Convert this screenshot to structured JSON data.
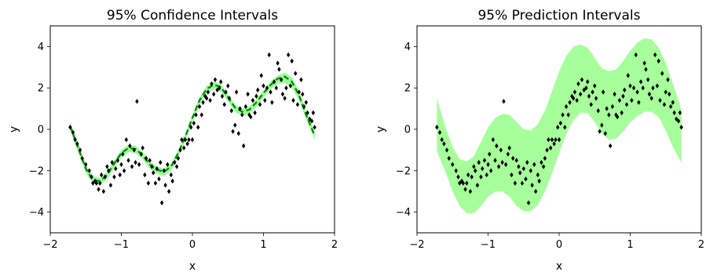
{
  "chart_data": [
    {
      "type": "scatter",
      "title": "95% Confidence Intervals",
      "xlabel": "x",
      "ylabel": "y",
      "xlim": [
        -2,
        2
      ],
      "ylim": [
        -5,
        5
      ],
      "xticks": [
        "−2",
        "−1",
        "0",
        "1",
        "2"
      ],
      "yticks": [
        "−4",
        "−2",
        "0",
        "2",
        "4"
      ],
      "band_color": "#99ff99",
      "mean_color": "#008800",
      "point_color": "#000000",
      "band": {
        "x": [
          -1.72,
          -1.6,
          -1.5,
          -1.4,
          -1.3,
          -1.2,
          -1.1,
          -1.0,
          -0.9,
          -0.8,
          -0.7,
          -0.6,
          -0.5,
          -0.4,
          -0.3,
          -0.2,
          -0.1,
          0.0,
          0.1,
          0.2,
          0.3,
          0.4,
          0.5,
          0.6,
          0.7,
          0.8,
          0.9,
          1.0,
          1.1,
          1.2,
          1.3,
          1.4,
          1.5,
          1.6,
          1.72
        ],
        "lower": [
          -0.05,
          -1.2,
          -2.1,
          -2.6,
          -2.7,
          -2.4,
          -1.85,
          -1.35,
          -1.1,
          -1.15,
          -1.45,
          -1.9,
          -2.15,
          -2.25,
          -2.0,
          -1.35,
          -0.55,
          0.35,
          1.2,
          1.75,
          1.95,
          1.85,
          1.35,
          0.85,
          0.65,
          0.75,
          1.1,
          1.55,
          1.95,
          2.2,
          2.25,
          2.0,
          1.4,
          0.5,
          -0.5
        ],
        "upper": [
          0.35,
          -0.75,
          -1.7,
          -2.25,
          -2.35,
          -2.05,
          -1.5,
          -1.0,
          -0.75,
          -0.8,
          -1.1,
          -1.55,
          -1.8,
          -1.9,
          -1.65,
          -1.0,
          -0.2,
          0.7,
          1.55,
          2.1,
          2.3,
          2.2,
          1.7,
          1.2,
          1.0,
          1.1,
          1.45,
          1.9,
          2.3,
          2.6,
          2.75,
          2.5,
          1.85,
          0.9,
          -0.1
        ]
      },
      "mean": {
        "x": [
          -1.72,
          -1.6,
          -1.5,
          -1.4,
          -1.3,
          -1.2,
          -1.1,
          -1.0,
          -0.9,
          -0.8,
          -0.7,
          -0.6,
          -0.5,
          -0.4,
          -0.3,
          -0.2,
          -0.1,
          0.0,
          0.1,
          0.2,
          0.3,
          0.4,
          0.5,
          0.6,
          0.7,
          0.8,
          0.9,
          1.0,
          1.1,
          1.2,
          1.3,
          1.4,
          1.5,
          1.6,
          1.72
        ],
        "y": [
          0.15,
          -0.95,
          -1.9,
          -2.45,
          -2.5,
          -2.2,
          -1.65,
          -1.15,
          -0.9,
          -0.95,
          -1.25,
          -1.7,
          -1.95,
          -2.05,
          -1.8,
          -1.15,
          -0.35,
          0.55,
          1.4,
          1.95,
          2.15,
          2.05,
          1.55,
          1.05,
          0.85,
          0.95,
          1.3,
          1.75,
          2.15,
          2.45,
          2.55,
          2.3,
          1.65,
          0.7,
          -0.3
        ]
      },
      "points": [
        [
          -1.72,
          0.1
        ],
        [
          -1.68,
          -0.15
        ],
        [
          -1.65,
          -0.5
        ],
        [
          -1.62,
          -0.7
        ],
        [
          -1.58,
          -1.0
        ],
        [
          -1.55,
          -1.4
        ],
        [
          -1.5,
          -1.7
        ],
        [
          -1.45,
          -2.0
        ],
        [
          -1.42,
          -2.3
        ],
        [
          -1.4,
          -2.6
        ],
        [
          -1.37,
          -2.5
        ],
        [
          -1.35,
          -2.6
        ],
        [
          -1.32,
          -2.9
        ],
        [
          -1.3,
          -2.6
        ],
        [
          -1.28,
          -2.2
        ],
        [
          -1.25,
          -3.0
        ],
        [
          -1.23,
          -2.3
        ],
        [
          -1.2,
          -1.8
        ],
        [
          -1.18,
          -2.0
        ],
        [
          -1.15,
          -2.7
        ],
        [
          -1.13,
          -1.6
        ],
        [
          -1.1,
          -2.3
        ],
        [
          -1.08,
          -1.9
        ],
        [
          -1.05,
          -1.5
        ],
        [
          -1.02,
          -2.2
        ],
        [
          -1.0,
          -1.7
        ],
        [
          -0.98,
          -1.2
        ],
        [
          -0.96,
          -2.0
        ],
        [
          -0.93,
          -0.5
        ],
        [
          -0.9,
          -1.5
        ],
        [
          -0.88,
          -0.8
        ],
        [
          -0.85,
          -1.8
        ],
        [
          -0.82,
          -1.0
        ],
        [
          -0.8,
          -1.6
        ],
        [
          -0.78,
          1.35
        ],
        [
          -0.75,
          -1.7
        ],
        [
          -0.72,
          -1.2
        ],
        [
          -0.7,
          -0.9
        ],
        [
          -0.67,
          -2.2
        ],
        [
          -0.65,
          -1.4
        ],
        [
          -0.62,
          -2.6
        ],
        [
          -0.6,
          -1.5
        ],
        [
          -0.57,
          -1.8
        ],
        [
          -0.55,
          -2.1
        ],
        [
          -0.52,
          -2.6
        ],
        [
          -0.5,
          -1.9
        ],
        [
          -0.47,
          -2.4
        ],
        [
          -0.45,
          -1.6
        ],
        [
          -0.43,
          -3.55
        ],
        [
          -0.4,
          -2.0
        ],
        [
          -0.38,
          -2.7
        ],
        [
          -0.35,
          -1.7
        ],
        [
          -0.33,
          -3.0
        ],
        [
          -0.3,
          -2.2
        ],
        [
          -0.28,
          -2.5
        ],
        [
          -0.25,
          -1.6
        ],
        [
          -0.22,
          -1.8
        ],
        [
          -0.2,
          -1.4
        ],
        [
          -0.17,
          -1.0
        ],
        [
          -0.15,
          -0.5
        ],
        [
          -0.12,
          -0.9
        ],
        [
          -0.1,
          -0.5
        ],
        [
          -0.07,
          -0.7
        ],
        [
          -0.05,
          -0.5
        ],
        [
          -0.02,
          0.1
        ],
        [
          0.0,
          -0.5
        ],
        [
          0.02,
          0.3
        ],
        [
          0.05,
          0.7
        ],
        [
          0.08,
          0.1
        ],
        [
          0.1,
          1.1
        ],
        [
          0.13,
          0.7
        ],
        [
          0.15,
          1.3
        ],
        [
          0.18,
          1.6
        ],
        [
          0.2,
          1.5
        ],
        [
          0.22,
          1.8
        ],
        [
          0.25,
          1.4
        ],
        [
          0.27,
          2.2
        ],
        [
          0.3,
          1.7
        ],
        [
          0.32,
          2.4
        ],
        [
          0.35,
          1.9
        ],
        [
          0.38,
          2.0
        ],
        [
          0.4,
          2.3
        ],
        [
          0.42,
          1.6
        ],
        [
          0.45,
          1.2
        ],
        [
          0.47,
          1.8
        ],
        [
          0.5,
          2.1
        ],
        [
          0.52,
          1.5
        ],
        [
          0.55,
          0.9
        ],
        [
          0.57,
          -0.1
        ],
        [
          0.6,
          0.2
        ],
        [
          0.62,
          1.8
        ],
        [
          0.65,
          -0.2
        ],
        [
          0.67,
          1.0
        ],
        [
          0.7,
          0.7
        ],
        [
          0.72,
          -0.8
        ],
        [
          0.75,
          1.1
        ],
        [
          0.78,
          1.7
        ],
        [
          0.8,
          0.7
        ],
        [
          0.82,
          0.6
        ],
        [
          0.85,
          1.4
        ],
        [
          0.88,
          0.8
        ],
        [
          0.9,
          1.6
        ],
        [
          0.92,
          1.9
        ],
        [
          0.95,
          1.2
        ],
        [
          0.97,
          2.6
        ],
        [
          1.0,
          2.1
        ],
        [
          1.02,
          1.4
        ],
        [
          1.05,
          2.0
        ],
        [
          1.08,
          3.6
        ],
        [
          1.1,
          1.8
        ],
        [
          1.12,
          1.3
        ],
        [
          1.15,
          2.3
        ],
        [
          1.18,
          2.0
        ],
        [
          1.2,
          3.2
        ],
        [
          1.22,
          2.9
        ],
        [
          1.25,
          2.4
        ],
        [
          1.27,
          1.7
        ],
        [
          1.3,
          1.5
        ],
        [
          1.32,
          2.0
        ],
        [
          1.35,
          3.6
        ],
        [
          1.38,
          2.1
        ],
        [
          1.4,
          3.3
        ],
        [
          1.42,
          1.4
        ],
        [
          1.45,
          2.7
        ],
        [
          1.48,
          1.2
        ],
        [
          1.5,
          1.8
        ],
        [
          1.53,
          2.4
        ],
        [
          1.55,
          1.7
        ],
        [
          1.57,
          1.1
        ],
        [
          1.6,
          1.3
        ],
        [
          1.62,
          0.8
        ],
        [
          1.65,
          0.5
        ],
        [
          1.68,
          0.4
        ],
        [
          1.7,
          0.8
        ],
        [
          1.72,
          0.1
        ]
      ]
    },
    {
      "type": "scatter",
      "title": "95% Prediction Intervals",
      "xlabel": "x",
      "ylabel": "y",
      "xlim": [
        -2,
        2
      ],
      "ylim": [
        -5,
        5
      ],
      "xticks": [
        "−2",
        "−1",
        "0",
        "1",
        "2"
      ],
      "yticks": [
        "−4",
        "−2",
        "0",
        "2",
        "4"
      ],
      "band_color": "#a6ff9a",
      "point_color": "#000000",
      "band": {
        "x": [
          -1.72,
          -1.6,
          -1.5,
          -1.4,
          -1.3,
          -1.2,
          -1.1,
          -1.0,
          -0.9,
          -0.8,
          -0.7,
          -0.6,
          -0.5,
          -0.4,
          -0.3,
          -0.2,
          -0.1,
          0.0,
          0.1,
          0.2,
          0.3,
          0.4,
          0.5,
          0.6,
          0.7,
          0.8,
          0.9,
          1.0,
          1.1,
          1.2,
          1.3,
          1.4,
          1.5,
          1.6,
          1.72
        ],
        "lower": [
          -1.05,
          -2.05,
          -3.0,
          -3.7,
          -4.05,
          -4.05,
          -3.7,
          -3.25,
          -3.0,
          -3.0,
          -3.25,
          -3.7,
          -3.95,
          -3.95,
          -3.65,
          -3.0,
          -2.1,
          -1.15,
          -0.2,
          0.45,
          0.8,
          0.8,
          0.35,
          -0.2,
          -0.5,
          -0.45,
          -0.1,
          0.35,
          0.65,
          0.85,
          0.85,
          0.6,
          -0.05,
          -0.85,
          -1.6
        ],
        "upper": [
          1.5,
          0.1,
          -0.85,
          -1.45,
          -1.55,
          -1.3,
          -0.6,
          0.1,
          0.55,
          0.75,
          0.7,
          0.35,
          0.0,
          -0.05,
          0.25,
          0.9,
          1.85,
          2.8,
          3.55,
          4.0,
          4.1,
          3.95,
          3.45,
          2.95,
          2.8,
          2.9,
          3.3,
          3.8,
          4.2,
          4.4,
          4.35,
          3.95,
          3.2,
          2.2,
          0.95
        ]
      },
      "points": [
        [
          -1.72,
          0.1
        ],
        [
          -1.68,
          -0.15
        ],
        [
          -1.65,
          -0.5
        ],
        [
          -1.62,
          -0.7
        ],
        [
          -1.58,
          -1.0
        ],
        [
          -1.55,
          -1.4
        ],
        [
          -1.5,
          -1.7
        ],
        [
          -1.45,
          -2.0
        ],
        [
          -1.42,
          -2.3
        ],
        [
          -1.4,
          -2.6
        ],
        [
          -1.37,
          -2.5
        ],
        [
          -1.35,
          -2.6
        ],
        [
          -1.32,
          -2.9
        ],
        [
          -1.3,
          -2.6
        ],
        [
          -1.28,
          -2.2
        ],
        [
          -1.25,
          -3.0
        ],
        [
          -1.23,
          -2.3
        ],
        [
          -1.2,
          -1.8
        ],
        [
          -1.18,
          -2.0
        ],
        [
          -1.15,
          -2.7
        ],
        [
          -1.13,
          -1.6
        ],
        [
          -1.1,
          -2.3
        ],
        [
          -1.08,
          -1.9
        ],
        [
          -1.05,
          -1.5
        ],
        [
          -1.02,
          -2.2
        ],
        [
          -1.0,
          -1.7
        ],
        [
          -0.98,
          -1.2
        ],
        [
          -0.96,
          -2.0
        ],
        [
          -0.93,
          -0.5
        ],
        [
          -0.9,
          -1.5
        ],
        [
          -0.88,
          -0.8
        ],
        [
          -0.85,
          -1.8
        ],
        [
          -0.82,
          -1.0
        ],
        [
          -0.8,
          -1.6
        ],
        [
          -0.78,
          1.35
        ],
        [
          -0.75,
          -1.7
        ],
        [
          -0.72,
          -1.2
        ],
        [
          -0.7,
          -0.9
        ],
        [
          -0.67,
          -2.2
        ],
        [
          -0.65,
          -1.4
        ],
        [
          -0.62,
          -2.6
        ],
        [
          -0.6,
          -1.5
        ],
        [
          -0.57,
          -1.8
        ],
        [
          -0.55,
          -2.1
        ],
        [
          -0.52,
          -2.6
        ],
        [
          -0.5,
          -1.9
        ],
        [
          -0.47,
          -2.4
        ],
        [
          -0.45,
          -1.6
        ],
        [
          -0.43,
          -3.55
        ],
        [
          -0.4,
          -2.0
        ],
        [
          -0.38,
          -2.7
        ],
        [
          -0.35,
          -1.7
        ],
        [
          -0.33,
          -3.0
        ],
        [
          -0.3,
          -2.2
        ],
        [
          -0.28,
          -2.5
        ],
        [
          -0.25,
          -1.6
        ],
        [
          -0.22,
          -1.8
        ],
        [
          -0.2,
          -1.4
        ],
        [
          -0.17,
          -1.0
        ],
        [
          -0.15,
          -0.5
        ],
        [
          -0.12,
          -0.9
        ],
        [
          -0.1,
          -0.5
        ],
        [
          -0.07,
          -0.7
        ],
        [
          -0.05,
          -0.5
        ],
        [
          -0.02,
          0.1
        ],
        [
          0.0,
          -0.5
        ],
        [
          0.02,
          0.3
        ],
        [
          0.05,
          0.7
        ],
        [
          0.08,
          0.1
        ],
        [
          0.1,
          1.1
        ],
        [
          0.13,
          0.7
        ],
        [
          0.15,
          1.3
        ],
        [
          0.18,
          1.6
        ],
        [
          0.2,
          1.5
        ],
        [
          0.22,
          1.8
        ],
        [
          0.25,
          1.4
        ],
        [
          0.27,
          2.2
        ],
        [
          0.3,
          1.7
        ],
        [
          0.32,
          2.4
        ],
        [
          0.35,
          1.9
        ],
        [
          0.38,
          2.0
        ],
        [
          0.4,
          2.3
        ],
        [
          0.42,
          1.6
        ],
        [
          0.45,
          1.2
        ],
        [
          0.47,
          1.8
        ],
        [
          0.5,
          2.1
        ],
        [
          0.52,
          1.5
        ],
        [
          0.55,
          0.9
        ],
        [
          0.57,
          -0.1
        ],
        [
          0.6,
          0.2
        ],
        [
          0.62,
          1.8
        ],
        [
          0.65,
          -0.2
        ],
        [
          0.67,
          1.0
        ],
        [
          0.7,
          0.7
        ],
        [
          0.72,
          -0.8
        ],
        [
          0.75,
          1.1
        ],
        [
          0.78,
          1.7
        ],
        [
          0.8,
          0.7
        ],
        [
          0.82,
          0.6
        ],
        [
          0.85,
          1.4
        ],
        [
          0.88,
          0.8
        ],
        [
          0.9,
          1.6
        ],
        [
          0.92,
          1.9
        ],
        [
          0.95,
          1.2
        ],
        [
          0.97,
          2.6
        ],
        [
          1.0,
          2.1
        ],
        [
          1.02,
          1.4
        ],
        [
          1.05,
          2.0
        ],
        [
          1.08,
          3.6
        ],
        [
          1.1,
          1.8
        ],
        [
          1.12,
          1.3
        ],
        [
          1.15,
          2.3
        ],
        [
          1.18,
          2.0
        ],
        [
          1.2,
          3.2
        ],
        [
          1.22,
          2.9
        ],
        [
          1.25,
          2.4
        ],
        [
          1.27,
          1.7
        ],
        [
          1.3,
          1.5
        ],
        [
          1.32,
          2.0
        ],
        [
          1.35,
          3.6
        ],
        [
          1.38,
          2.1
        ],
        [
          1.4,
          3.3
        ],
        [
          1.42,
          1.4
        ],
        [
          1.45,
          2.7
        ],
        [
          1.48,
          1.2
        ],
        [
          1.5,
          1.8
        ],
        [
          1.53,
          2.4
        ],
        [
          1.55,
          1.7
        ],
        [
          1.57,
          1.1
        ],
        [
          1.6,
          1.3
        ],
        [
          1.62,
          0.8
        ],
        [
          1.65,
          0.5
        ],
        [
          1.68,
          0.4
        ],
        [
          1.7,
          0.8
        ],
        [
          1.72,
          0.1
        ]
      ]
    }
  ]
}
